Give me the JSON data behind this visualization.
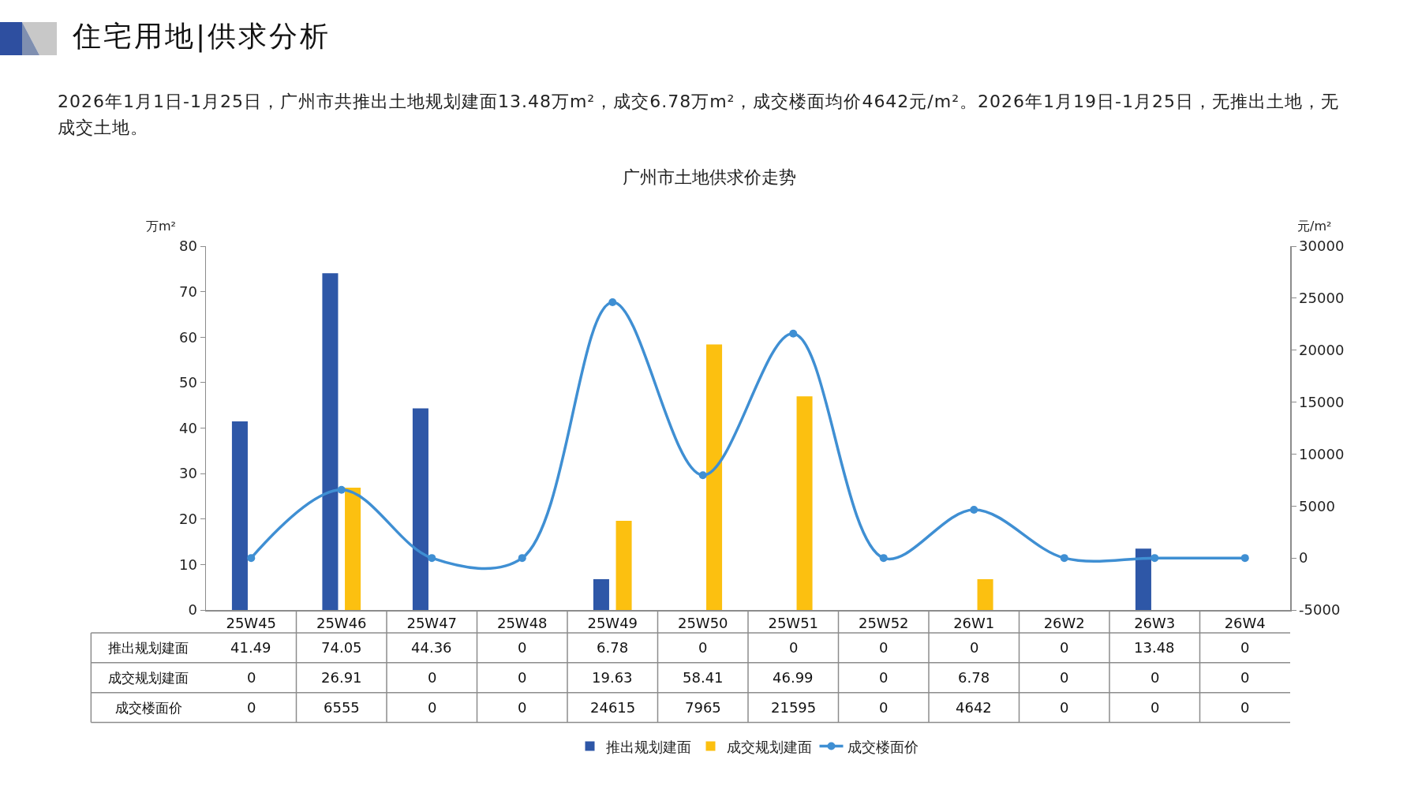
{
  "chart_data": {
    "type": "bar",
    "title": "广州市土地供求价走势",
    "subtitle": "2026年1月1日-1月25日，广州市共推出土地规划建面13.48万m²，成交6.78万m²，成交楼面均价4642元/m²。2026年1月19日-1月25日，无推出土地，无成交土地。",
    "annotations": [
      "住宅用地|供求分析"
    ],
    "ylabel": "万m²",
    "y2label": "元/m²",
    "categories": [
      "25W45",
      "25W46",
      "25W47",
      "25W48",
      "25W49",
      "25W50",
      "25W51",
      "25W52",
      "26W1",
      "26W2",
      "26W3",
      "26W4"
    ],
    "series": [
      {
        "name": "推出规划建面",
        "color": "#2e57a7",
        "values": [
          41.49,
          74.05,
          44.36,
          0,
          6.78,
          0,
          0,
          0,
          0,
          0,
          13.48,
          0
        ]
      },
      {
        "name": "成交规划建面",
        "color": "#fcc010",
        "values": [
          0,
          26.91,
          0,
          0,
          19.63,
          58.41,
          46.99,
          0,
          6.78,
          0,
          0,
          0
        ]
      },
      {
        "name": "成交楼面价",
        "type": "line",
        "axis": "y2",
        "color": "#3f8fd3",
        "values": [
          0,
          6555,
          0,
          0,
          24615,
          7965,
          21595,
          0,
          4642,
          0,
          0,
          0
        ]
      }
    ],
    "ylim": [
      0,
      80
    ],
    "yticks": [
      0,
      10,
      20,
      30,
      40,
      50,
      60,
      70,
      80
    ],
    "y2lim": [
      -5000,
      30000
    ],
    "y2ticks": [
      -5000,
      0,
      5000,
      10000,
      15000,
      20000,
      25000,
      30000
    ],
    "marker": "circle",
    "line_style": "solid",
    "legend": "bottom",
    "data_labels": true
  }
}
